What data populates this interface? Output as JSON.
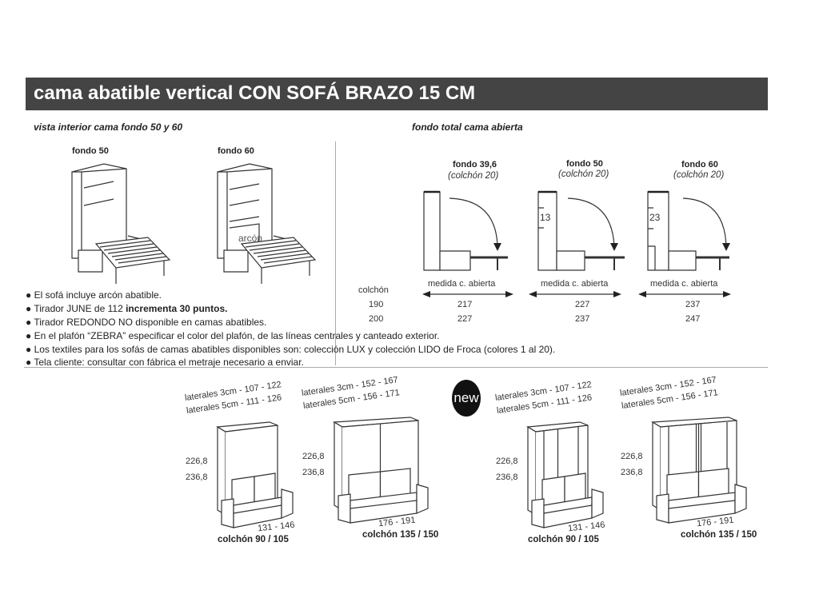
{
  "title": "cama abatible vertical CON SOFÁ BRAZO 15 CM",
  "interior": {
    "heading": "vista interior cama fondo 50 y 60",
    "views": [
      {
        "label": "fondo 50"
      },
      {
        "label": "fondo 60",
        "tag": "arcón"
      }
    ]
  },
  "open_depth": {
    "heading": "fondo total cama abierta",
    "colchon_label": "colchón",
    "medida_label": "medida c. abierta",
    "rows": [
      "190",
      "200"
    ],
    "columns": [
      {
        "label": "fondo 39,6",
        "note": "(colchón 20)",
        "inner": "",
        "values": [
          "217",
          "227"
        ]
      },
      {
        "label": "fondo 50",
        "note": "(colchón 20)",
        "inner": "13",
        "values": [
          "227",
          "237"
        ]
      },
      {
        "label": "fondo 60",
        "note": "(colchón 20)",
        "inner": "23",
        "values": [
          "237",
          "247"
        ]
      }
    ]
  },
  "notes": [
    {
      "text": "● El sofá incluye arcón abatible.",
      "bold": ""
    },
    {
      "text": "● Tirador JUNE de 112 ",
      "bold": "incrementa 30 puntos."
    },
    {
      "text": "● Tirador REDONDO NO disponible en camas abatibles.",
      "bold": ""
    },
    {
      "text": "● En el plafón “ZEBRA” especificar el color del plafón, de las líneas centrales y canteado exterior.",
      "bold": ""
    },
    {
      "text": "● Los textiles para los sofás de camas abatibles disponibles son: colección LUX y colección LIDO de Froca (colores 1 al 20).",
      "bold": ""
    },
    {
      "text": "● Tela cliente: consultar con fábrica el metraje necesario a enviar.",
      "bold": ""
    }
  ],
  "badge": "new",
  "models": [
    {
      "lat3": "laterales 3cm - 107 - 122",
      "lat5": "laterales 5cm - 111 - 126",
      "h1": "226,8",
      "h2": "236,8",
      "width": "131 - 146",
      "mattress": "colchón 90 / 105"
    },
    {
      "lat3": "laterales 3cm - 152 - 167",
      "lat5": "laterales 5cm - 156 - 171",
      "h1": "226,8",
      "h2": "236,8",
      "width": "176 - 191",
      "mattress": "colchón 135 / 150"
    },
    {
      "lat3": "laterales 3cm - 107 - 122",
      "lat5": "laterales 5cm - 111 - 126",
      "h1": "226,8",
      "h2": "236,8",
      "width": "131 - 146",
      "mattress": "colchón 90 / 105"
    },
    {
      "lat3": "laterales 3cm - 152 - 167",
      "lat5": "laterales 5cm - 156 - 171",
      "h1": "226,8",
      "h2": "236,8",
      "width": "176 - 191",
      "mattress": "colchón 135 / 150"
    }
  ]
}
